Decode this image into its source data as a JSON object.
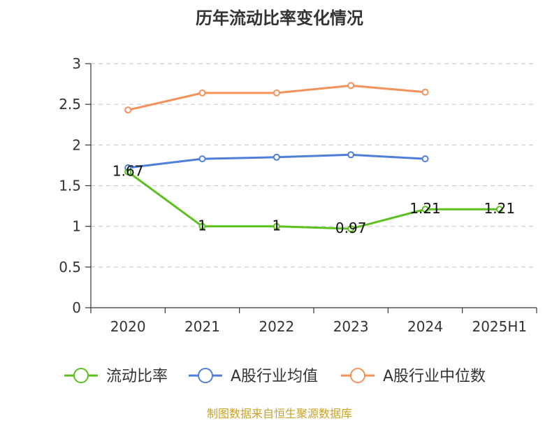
{
  "chart_data": {
    "type": "line",
    "title": "历年流动比率变化情况",
    "categories": [
      "2020",
      "2021",
      "2022",
      "2023",
      "2024",
      "2025H1"
    ],
    "ylim": [
      0,
      3
    ],
    "yticks": [
      0,
      0.5,
      1,
      1.5,
      2,
      2.5,
      3
    ],
    "ytick_labels": [
      "0",
      "0.5",
      "1",
      "1.5",
      "2",
      "2.5",
      "3"
    ],
    "grid": true,
    "legend_position": "bottom",
    "series": [
      {
        "name": "流动比率",
        "color": "#5cc020",
        "values": [
          1.67,
          1.0,
          1.0,
          0.97,
          1.21,
          1.21
        ],
        "data_labels": [
          "1.67",
          "1",
          "1",
          "0.97",
          "1.21",
          "1.21"
        ]
      },
      {
        "name": "A股行业均值",
        "color": "#4d7fdb",
        "values": [
          1.72,
          1.83,
          1.85,
          1.88,
          1.83,
          null
        ]
      },
      {
        "name": "A股行业中位数",
        "color": "#f5915a",
        "values": [
          2.43,
          2.64,
          2.64,
          2.73,
          2.65,
          null
        ]
      }
    ],
    "source": "制图数据来自恒生聚源数据库"
  }
}
